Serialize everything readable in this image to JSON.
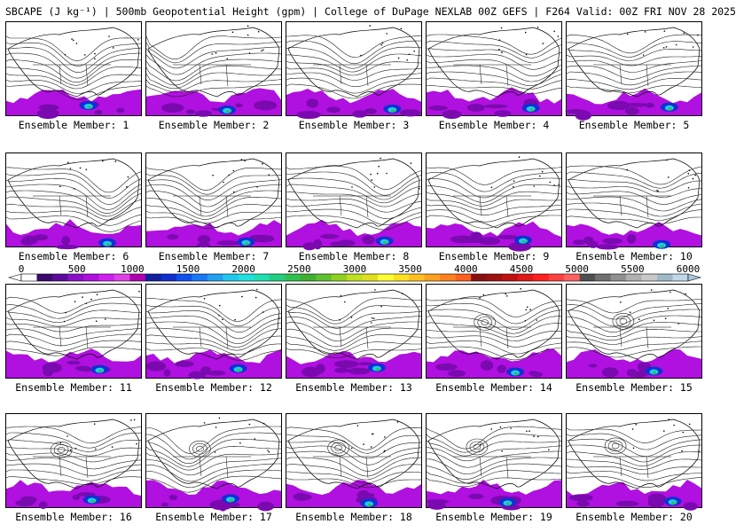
{
  "title": "SBCAPE (J kg⁻¹) | 500mb Geopotential Height (gpm) | College of DuPage NEXLAB 00Z GEFS | F264 Valid: 00Z FRI NOV 28 2025",
  "panels": [
    {
      "label": "Ensemble Member: 1",
      "member": 1
    },
    {
      "label": "Ensemble Member: 2",
      "member": 2
    },
    {
      "label": "Ensemble Member: 3",
      "member": 3
    },
    {
      "label": "Ensemble Member: 4",
      "member": 4
    },
    {
      "label": "Ensemble Member: 5",
      "member": 5
    },
    {
      "label": "Ensemble Member: 6",
      "member": 6
    },
    {
      "label": "Ensemble Member: 7",
      "member": 7
    },
    {
      "label": "Ensemble Member: 8",
      "member": 8
    },
    {
      "label": "Ensemble Member: 9",
      "member": 9
    },
    {
      "label": "Ensemble Member: 10",
      "member": 10
    },
    {
      "label": "Ensemble Member: 11",
      "member": 11
    },
    {
      "label": "Ensemble Member: 12",
      "member": 12
    },
    {
      "label": "Ensemble Member: 13",
      "member": 13
    },
    {
      "label": "Ensemble Member: 14",
      "member": 14
    },
    {
      "label": "Ensemble Member: 15",
      "member": 15
    },
    {
      "label": "Ensemble Member: 16",
      "member": 16
    },
    {
      "label": "Ensemble Member: 17",
      "member": 17
    },
    {
      "label": "Ensemble Member: 18",
      "member": 18
    },
    {
      "label": "Ensemble Member: 19",
      "member": 19
    },
    {
      "label": "Ensemble Member: 20",
      "member": 20
    }
  ],
  "colorbar": {
    "ticks": [
      "0",
      "500",
      "1000",
      "1500",
      "2000",
      "2500",
      "3000",
      "3500",
      "4000",
      "4500",
      "5000",
      "5500",
      "6000"
    ],
    "min": 0,
    "max": 6000,
    "colors": [
      "#ffffff",
      "#3a0a6e",
      "#5a0a9a",
      "#8a10c8",
      "#b010e0",
      "#d020f0",
      "#e040e8",
      "#b000b0",
      "#1020a0",
      "#1030d0",
      "#1050f0",
      "#1878f8",
      "#20a0f0",
      "#20c8f0",
      "#20e0e0",
      "#20e0b0",
      "#20d080",
      "#30c050",
      "#40b030",
      "#60c030",
      "#90d020",
      "#c0e020",
      "#e0e020",
      "#ffff30",
      "#ffe020",
      "#ffc020",
      "#ffa020",
      "#ff8020",
      "#ff6020",
      "#8a1010",
      "#a01010",
      "#c01010",
      "#e01818",
      "#ff2020",
      "#ff4040",
      "#ff6060",
      "#505050",
      "#707070",
      "#909090",
      "#b0b0b0",
      "#c8c8c8",
      "#a0b8c8",
      "#c0d8e8"
    ],
    "under_color": "#ffffff",
    "over_color": "#a8c8d8"
  },
  "map_colors": {
    "land": "#ffffff",
    "contour": "#202020",
    "coast": "#000000",
    "cape_low": "#b010e0",
    "cape_mid": "#7a0ab0",
    "cape_blue": "#1030d0",
    "cape_cyan": "#20c8f0",
    "cape_green": "#30c050"
  }
}
